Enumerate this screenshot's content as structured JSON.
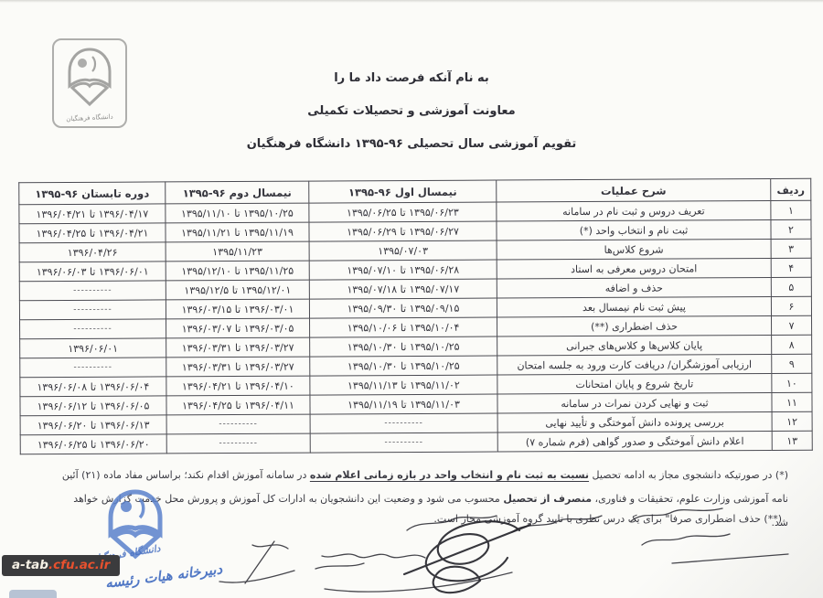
{
  "document": {
    "bismillah": "به نام آنکه فرصت داد ما را",
    "department": "معاونت آموزشی و تحصیلات تکمیلی",
    "title": "تقویم آموزشی سال تحصیلی ۹۶-۱۳۹۵ دانشگاه فرهنگیان"
  },
  "logo": {
    "caption": "دانشگاه فرهنگیان"
  },
  "table": {
    "headers": [
      "ردیف",
      "شرح عملیات",
      "نیمسال اول ۹۶-۱۳۹۵",
      "نیمسال دوم ۹۶-۱۳۹۵",
      "دوره تابستان ۹۶-۱۳۹۵"
    ],
    "empty_marker": "----------",
    "rows": [
      {
        "no": "۱",
        "desc": "تعریف دروس و ثبت نام در سامانه",
        "sem1": "۱۳۹۵/۰۶/۲۳ تا ۱۳۹۵/۰۶/۲۵",
        "sem2": "۱۳۹۵/۱۰/۲۵ تا ۱۳۹۵/۱۱/۱۰",
        "summer": "۱۳۹۶/۰۴/۱۷ تا ۱۳۹۶/۰۴/۲۱"
      },
      {
        "no": "۲",
        "desc": "ثبت نام و انتخاب واحد (*)",
        "sem1": "۱۳۹۵/۰۶/۲۷ تا ۱۳۹۵/۰۶/۲۹",
        "sem2": "۱۳۹۵/۱۱/۱۹ تا ۱۳۹۵/۱۱/۲۱",
        "summer": "۱۳۹۶/۰۴/۲۱ تا ۱۳۹۶/۰۴/۲۵"
      },
      {
        "no": "۳",
        "desc": "شروع کلاس‌ها",
        "sem1": "۱۳۹۵/۰۷/۰۳",
        "sem2": "۱۳۹۵/۱۱/۲۳",
        "summer": "۱۳۹۶/۰۴/۲۶"
      },
      {
        "no": "۴",
        "desc": "امتحان دروس معرفی به استاد",
        "sem1": "۱۳۹۵/۰۶/۲۸ تا ۱۳۹۵/۰۷/۱۰",
        "sem2": "۱۳۹۵/۱۱/۲۵ تا ۱۳۹۵/۱۲/۱۰",
        "summer": "۱۳۹۶/۰۶/۰۱ تا ۱۳۹۶/۰۶/۰۳"
      },
      {
        "no": "۵",
        "desc": "حذف و اضافه",
        "sem1": "۱۳۹۵/۰۷/۱۷ تا ۱۳۹۵/۰۷/۱۸",
        "sem2": "۱۳۹۵/۱۲/۰۱ تا ۱۳۹۵/۱۲/۵",
        "summer": "----------"
      },
      {
        "no": "۶",
        "desc": "پیش ثبت نام نیمسال بعد",
        "sem1": "۱۳۹۵/۰۹/۱۵ تا ۱۳۹۵/۰۹/۳۰",
        "sem2": "۱۳۹۶/۰۳/۰۱ تا ۱۳۹۶/۰۳/۱۵",
        "summer": "----------"
      },
      {
        "no": "۷",
        "desc": "حذف اضطراری (**)",
        "sem1": "۱۳۹۵/۱۰/۰۴ تا ۱۳۹۵/۱۰/۰۶",
        "sem2": "۱۳۹۶/۰۳/۰۵ تا ۱۳۹۶/۰۳/۰۷",
        "summer": "----------"
      },
      {
        "no": "۸",
        "desc": "پایان کلاس‌ها و کلاس‌های جبرانی",
        "sem1": "۱۳۹۵/۱۰/۲۵ تا ۱۳۹۵/۱۰/۳۰",
        "sem2": "۱۳۹۶/۰۳/۲۷ تا ۱۳۹۶/۰۳/۳۱",
        "summer": "۱۳۹۶/۰۶/۰۱"
      },
      {
        "no": "۹",
        "desc": "ارزیابی آموزشگران/ دریافت کارت ورود به جلسه امتحان",
        "sem1": "۱۳۹۵/۱۰/۲۵ تا ۱۳۹۵/۱۰/۳۰",
        "sem2": "۱۳۹۶/۰۳/۲۷ تا ۱۳۹۶/۰۳/۳۱",
        "summer": "----------"
      },
      {
        "no": "۱۰",
        "desc": "تاریخ شروع و پایان امتحانات",
        "sem1": "۱۳۹۵/۱۱/۰۲ تا ۱۳۹۵/۱۱/۱۳",
        "sem2": "۱۳۹۶/۰۴/۱۰ تا ۱۳۹۶/۰۴/۲۱",
        "summer": "۱۳۹۶/۰۶/۰۴ تا ۱۳۹۶/۰۶/۰۸"
      },
      {
        "no": "۱۱",
        "desc": "ثبت و نهایی کردن نمرات در سامانه",
        "sem1": "۱۳۹۵/۱۱/۰۳ تا ۱۳۹۵/۱۱/۱۹",
        "sem2": "۱۳۹۶/۰۴/۱۱ تا ۱۳۹۶/۰۴/۲۵",
        "summer": "۱۳۹۶/۰۶/۰۵ تا ۱۳۹۶/۰۶/۱۲"
      },
      {
        "no": "۱۲",
        "desc": "بررسی پرونده دانش آموختگی و تأیید نهایی",
        "sem1": "----------",
        "sem2": "----------",
        "summer": "۱۳۹۶/۰۶/۱۳ تا ۱۳۹۶/۰۶/۲۰"
      },
      {
        "no": "۱۳",
        "desc": "اعلام دانش آموختگی و صدور گواهی (فرم شماره ۷)",
        "sem1": "----------",
        "sem2": "----------",
        "summer": "۱۳۹۶/۰۶/۲۰ تا ۱۳۹۶/۰۶/۲۵"
      }
    ]
  },
  "footnotes": {
    "note1_part1": "(*) در صورتیکه دانشجوی مجاز به ادامه تحصیل",
    "note1_underlined": "نسبت به ثبت نام و انتخاب واحد در بازه زمانی اعلام شده",
    "note1_part2": "در سامانه آموزش اقدام نکند؛ براساس مفاد ماده (۲۱) آئین",
    "note1_part3": "نامه آموزشی وزارت علوم، تحقیقات و فناوری،",
    "note1_bold": "منصرف از تحصیل",
    "note1_part4": "محسوب می شود و وضعیت این دانشجویان به ادارات کل آموزش و پرورش محل خدمت گزارش خواهد شد.",
    "note2": "(**) حذف اضطراری صرفا\" برای یک درس نظری با تایید گروه آموزشی مجاز است."
  },
  "stamp": {
    "university": "دانشگاه فرهنگیان",
    "office": "دبیرخانه هیات رئیسه"
  },
  "watermark": {
    "site_prefix": "a-tab",
    "site_suffix": ".cfu.ac.ir"
  }
}
